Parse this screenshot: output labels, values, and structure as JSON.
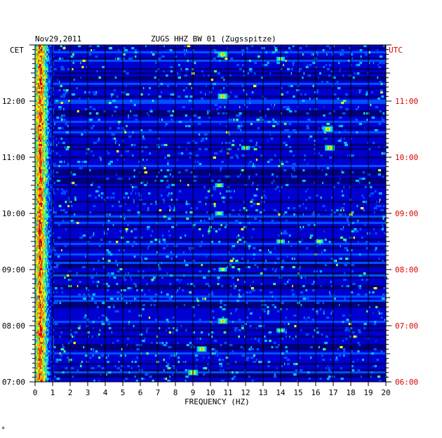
{
  "header": {
    "date": "Nov29,2011",
    "station": "ZUGS HHZ BW 01 (Zugsspitze)"
  },
  "footer_mark": "*",
  "chart_data": {
    "type": "heatmap",
    "title": "ZUGS HHZ BW 01 (Zugsspitze)",
    "date": "Nov29,2011",
    "xlabel": "FREQUENCY (HZ)",
    "x_ticks": [
      "0",
      "1",
      "2",
      "3",
      "4",
      "5",
      "6",
      "7",
      "8",
      "9",
      "10",
      "11",
      "12",
      "13",
      "14",
      "15",
      "16",
      "17",
      "18",
      "19",
      "20"
    ],
    "xlim": [
      0,
      20
    ],
    "left_axis_label": "CET",
    "right_axis_label": "UTC",
    "left_ticks": [
      "12:00",
      "11:00",
      "10:00",
      "09:00",
      "08:00",
      "07:00"
    ],
    "right_ticks": [
      "11:00",
      "10:00",
      "09:00",
      "08:00",
      "07:00",
      "06:00"
    ],
    "time_range_cet": [
      "07:00",
      "13:00"
    ],
    "colormap": [
      "#00007a",
      "#0000d0",
      "#0050ff",
      "#00c0ff",
      "#40ff80",
      "#ffff00",
      "#ff8000",
      "#d00000"
    ],
    "grid": true,
    "hotspots": [
      {
        "f": 0.3,
        "t": "07:00-13:00",
        "level": "high"
      },
      {
        "f": 10.7,
        "t": "12:50",
        "level": "high"
      },
      {
        "f": 14.0,
        "t": "12:45",
        "level": "mid"
      },
      {
        "f": 10.7,
        "t": "12:05",
        "level": "high"
      },
      {
        "f": 16.7,
        "t": "11:30",
        "level": "high"
      },
      {
        "f": 12.0,
        "t": "11:10",
        "level": "mid"
      },
      {
        "f": 16.8,
        "t": "11:10",
        "level": "high"
      },
      {
        "f": 10.5,
        "t": "10:30",
        "level": "mid"
      },
      {
        "f": 10.5,
        "t": "10:00",
        "level": "mid"
      },
      {
        "f": 14.0,
        "t": "09:30",
        "level": "mid"
      },
      {
        "f": 16.2,
        "t": "09:30",
        "level": "mid"
      },
      {
        "f": 10.7,
        "t": "09:00",
        "level": "mid"
      },
      {
        "f": 10.7,
        "t": "08:05",
        "level": "high"
      },
      {
        "f": 14.0,
        "t": "07:55",
        "level": "mid"
      },
      {
        "f": 9.5,
        "t": "07:35",
        "level": "high"
      },
      {
        "f": 9.0,
        "t": "07:10",
        "level": "high"
      }
    ]
  }
}
